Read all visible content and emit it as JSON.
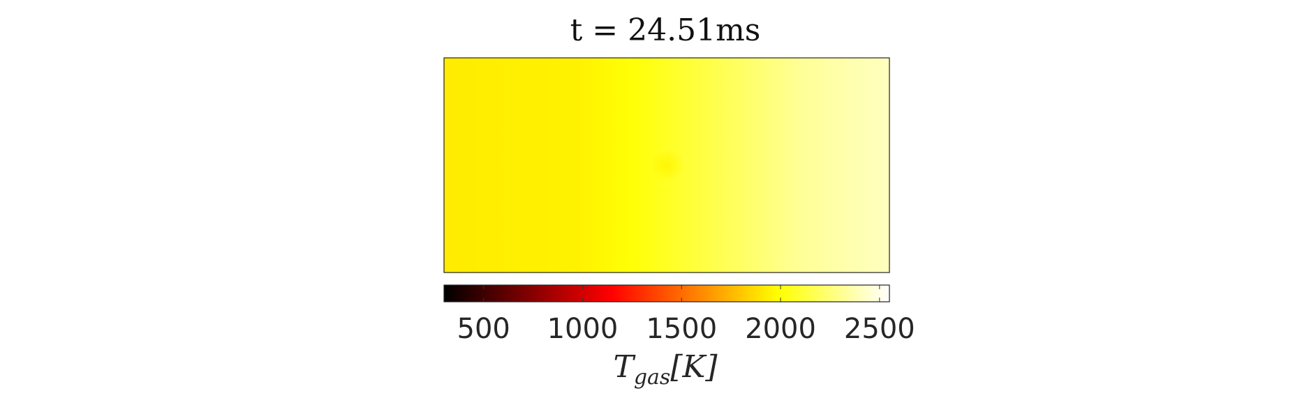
{
  "chart_data": {
    "type": "heatmap",
    "title": "t = 24.51ms",
    "colormap": "hot",
    "colorbar": {
      "orientation": "horizontal",
      "placement": "bottom",
      "range": [
        300,
        2550
      ],
      "ticks": [
        500,
        1000,
        1500,
        2000,
        2500
      ],
      "tick_labels": [
        "500",
        "1000",
        "1500",
        "2000",
        "2500"
      ],
      "label_main": "T",
      "label_sub": "gas",
      "label_unit": "[K]"
    },
    "field": {
      "description_values_K": {
        "left_edge": 1930,
        "center": 2000,
        "right_edge": 2400,
        "center_spot": 1960
      },
      "gradient_stops": [
        {
          "pos": 0.0,
          "value": 1925
        },
        {
          "pos": 0.3,
          "value": 1945
        },
        {
          "pos": 0.42,
          "value": 2000
        },
        {
          "pos": 0.6,
          "value": 2150
        },
        {
          "pos": 0.8,
          "value": 2320
        },
        {
          "pos": 1.0,
          "value": 2410
        }
      ],
      "spot": {
        "x_frac": 0.5,
        "y_frac": 0.5,
        "value": 1955
      }
    }
  }
}
